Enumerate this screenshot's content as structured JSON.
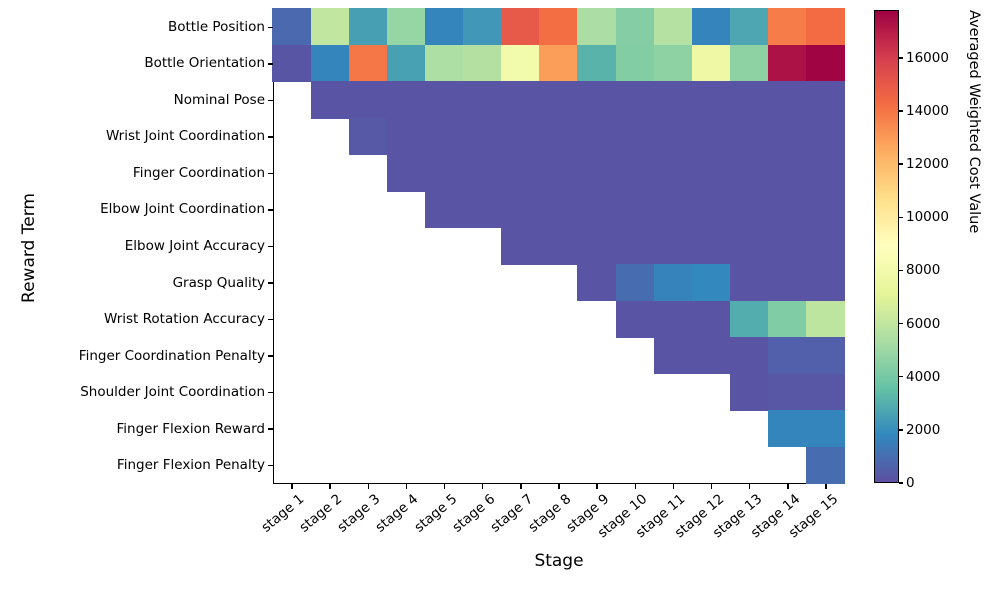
{
  "figure": {
    "xlabel": "Stage",
    "ylabel": "Reward Term"
  },
  "chart_data": {
    "type": "heatmap",
    "title": "",
    "xlabel": "Stage",
    "ylabel": "Reward Term",
    "x_labels": [
      "stage 1",
      "stage 2",
      "stage 3",
      "stage 4",
      "stage 5",
      "stage 6",
      "stage 7",
      "stage 8",
      "stage 9",
      "stage 10",
      "stage 11",
      "stage 12",
      "stage 13",
      "stage 14",
      "stage 15"
    ],
    "y_labels": [
      "Bottle Position",
      "Bottle Orientation",
      "Nominal Pose",
      "Wrist Joint Coordination",
      "Finger Coordination",
      "Elbow Joint Coordination",
      "Elbow Joint Accuracy",
      "Grasp Quality",
      "Wrist Rotation Accuracy",
      "Finger Coordination Penalty",
      "Shoulder Joint Coordination",
      "Finger Flexion Reward",
      "Finger Flexion Penalty"
    ],
    "values": [
      [
        800,
        6000,
        2500,
        4800,
        1700,
        2250,
        15000,
        14200,
        5350,
        4350,
        5650,
        1650,
        2700,
        13800,
        14300
      ],
      [
        200,
        1700,
        14000,
        2550,
        5400,
        5600,
        8000,
        12900,
        3100,
        4300,
        4600,
        7700,
        4600,
        17300,
        17700
      ],
      [
        null,
        150,
        150,
        150,
        150,
        150,
        150,
        150,
        150,
        150,
        150,
        150,
        150,
        150,
        150
      ],
      [
        null,
        null,
        300,
        150,
        150,
        150,
        150,
        150,
        150,
        150,
        150,
        150,
        150,
        150,
        150
      ],
      [
        null,
        null,
        null,
        150,
        150,
        150,
        150,
        150,
        150,
        150,
        150,
        150,
        150,
        150,
        150
      ],
      [
        null,
        null,
        null,
        null,
        150,
        150,
        150,
        150,
        150,
        150,
        150,
        150,
        150,
        150,
        150
      ],
      [
        null,
        null,
        null,
        null,
        null,
        null,
        150,
        150,
        150,
        150,
        150,
        150,
        150,
        150,
        150
      ],
      [
        null,
        null,
        null,
        null,
        null,
        null,
        null,
        null,
        150,
        900,
        1600,
        1800,
        150,
        150,
        150
      ],
      [
        null,
        null,
        null,
        null,
        null,
        null,
        null,
        null,
        null,
        150,
        150,
        150,
        2900,
        4200,
        5900
      ],
      [
        null,
        null,
        null,
        null,
        null,
        null,
        null,
        null,
        null,
        null,
        150,
        150,
        150,
        500,
        500
      ],
      [
        null,
        null,
        null,
        null,
        null,
        null,
        null,
        null,
        null,
        null,
        null,
        null,
        150,
        250,
        250
      ],
      [
        null,
        null,
        null,
        null,
        null,
        null,
        null,
        null,
        null,
        null,
        null,
        null,
        null,
        1700,
        1700
      ],
      [
        null,
        null,
        null,
        null,
        null,
        null,
        null,
        null,
        null,
        null,
        null,
        null,
        null,
        null,
        900
      ]
    ],
    "missing_cells_rendered_as": "white",
    "colormap": "Spectral_r",
    "colormap_stops": [
      "#5e4fa2",
      "#3288bd",
      "#66c2a5",
      "#abdda4",
      "#e6f598",
      "#ffffbf",
      "#fee08b",
      "#fdae61",
      "#f46d43",
      "#d53e4f",
      "#9e0142"
    ],
    "vmin": 0,
    "vmax": 17800,
    "colorbar": {
      "label": "Averaged Weighted Cost Value",
      "ticks": [
        "0",
        "2000",
        "4000",
        "6000",
        "8000",
        "10000",
        "12000",
        "14000",
        "16000"
      ],
      "tick_values": [
        0,
        2000,
        4000,
        6000,
        8000,
        10000,
        12000,
        14000,
        16000
      ]
    },
    "grid": "off",
    "legend": "none"
  }
}
